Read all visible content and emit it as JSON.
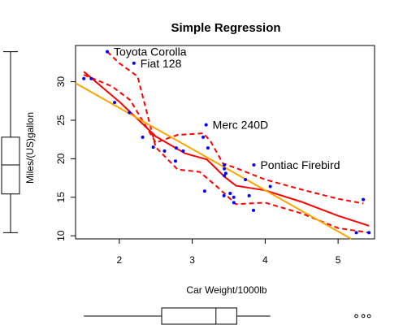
{
  "chart_data": {
    "type": "scatter",
    "title": "Simple Regression",
    "xlabel": "Car Weight/1000lb",
    "ylabel": "Miles/(US)gallon",
    "xlim": [
      1.4,
      5.5
    ],
    "ylim": [
      9.6,
      34.7
    ],
    "xticks": [
      2,
      3,
      4,
      5
    ],
    "yticks": [
      10,
      15,
      20,
      25,
      30
    ],
    "grid": false,
    "colors": {
      "points": "#0000ff",
      "lowess": "#ff0000",
      "band": "#ff0000",
      "regression": "#ffa500",
      "axis": "#000000"
    },
    "points": [
      {
        "x": 2.62,
        "y": 21.0
      },
      {
        "x": 2.875,
        "y": 21.0
      },
      {
        "x": 2.32,
        "y": 22.8
      },
      {
        "x": 3.215,
        "y": 21.4
      },
      {
        "x": 3.44,
        "y": 18.7
      },
      {
        "x": 3.46,
        "y": 18.1
      },
      {
        "x": 3.57,
        "y": 14.3
      },
      {
        "x": 3.19,
        "y": 24.4
      },
      {
        "x": 3.15,
        "y": 22.8
      },
      {
        "x": 3.44,
        "y": 19.2
      },
      {
        "x": 3.44,
        "y": 17.8
      },
      {
        "x": 4.07,
        "y": 16.4
      },
      {
        "x": 3.73,
        "y": 17.3
      },
      {
        "x": 3.78,
        "y": 15.2
      },
      {
        "x": 5.25,
        "y": 10.4
      },
      {
        "x": 5.424,
        "y": 10.4
      },
      {
        "x": 5.345,
        "y": 14.7
      },
      {
        "x": 2.2,
        "y": 32.4
      },
      {
        "x": 1.615,
        "y": 30.4
      },
      {
        "x": 1.835,
        "y": 33.9
      },
      {
        "x": 2.465,
        "y": 21.5
      },
      {
        "x": 3.52,
        "y": 15.5
      },
      {
        "x": 3.435,
        "y": 15.2
      },
      {
        "x": 3.84,
        "y": 13.3
      },
      {
        "x": 3.845,
        "y": 19.2
      },
      {
        "x": 1.935,
        "y": 27.3
      },
      {
        "x": 2.14,
        "y": 26.0
      },
      {
        "x": 1.513,
        "y": 30.4
      },
      {
        "x": 3.17,
        "y": 15.8
      },
      {
        "x": 2.77,
        "y": 19.7
      },
      {
        "x": 3.57,
        "y": 15.0
      },
      {
        "x": 2.78,
        "y": 21.4
      }
    ],
    "labeled_points": [
      {
        "x": 1.835,
        "y": 33.9,
        "label": "Toyota Corolla"
      },
      {
        "x": 2.2,
        "y": 32.4,
        "label": "Fiat 128"
      },
      {
        "x": 3.19,
        "y": 24.4,
        "label": "Merc 240D"
      },
      {
        "x": 3.845,
        "y": 19.2,
        "label": "Pontiac Firebird"
      }
    ],
    "regression_line": {
      "intercept": 37.285,
      "slope": -5.344
    },
    "lowess": [
      {
        "x": 1.513,
        "y": 31.3
      },
      {
        "x": 2.0,
        "y": 27.4
      },
      {
        "x": 2.5,
        "y": 22.9
      },
      {
        "x": 2.9,
        "y": 20.7
      },
      {
        "x": 3.2,
        "y": 19.9
      },
      {
        "x": 3.45,
        "y": 17.6
      },
      {
        "x": 3.6,
        "y": 16.5
      },
      {
        "x": 4.0,
        "y": 15.9
      },
      {
        "x": 4.5,
        "y": 14.4
      },
      {
        "x": 5.0,
        "y": 12.6
      },
      {
        "x": 5.424,
        "y": 11.3
      }
    ],
    "band_upper": [
      {
        "x": 1.513,
        "y": 30.9
      },
      {
        "x": 1.9,
        "y": 29.4
      },
      {
        "x": 2.15,
        "y": 27.6
      },
      {
        "x": 2.5,
        "y": 22.1
      },
      {
        "x": 2.8,
        "y": 23.1
      },
      {
        "x": 3.15,
        "y": 23.3
      },
      {
        "x": 3.25,
        "y": 22.3
      },
      {
        "x": 3.42,
        "y": 19.4
      },
      {
        "x": 3.6,
        "y": 18.8
      },
      {
        "x": 4.0,
        "y": 17.3
      },
      {
        "x": 4.5,
        "y": 16.0
      },
      {
        "x": 5.0,
        "y": 14.8
      },
      {
        "x": 5.345,
        "y": 14.2
      }
    ],
    "band_lower": [
      {
        "x": 1.835,
        "y": 33.9
      },
      {
        "x": 2.0,
        "y": 32.4
      },
      {
        "x": 2.25,
        "y": 30.7
      },
      {
        "x": 2.5,
        "y": 21.5
      },
      {
        "x": 2.8,
        "y": 18.6
      },
      {
        "x": 3.1,
        "y": 18.3
      },
      {
        "x": 3.35,
        "y": 16.3
      },
      {
        "x": 3.6,
        "y": 14.1
      },
      {
        "x": 4.0,
        "y": 14.3
      },
      {
        "x": 4.5,
        "y": 12.9
      },
      {
        "x": 5.0,
        "y": 11.0
      },
      {
        "x": 5.424,
        "y": 10.4
      }
    ],
    "boxplot_x": {
      "min": 1.513,
      "q1": 2.581,
      "median": 3.325,
      "q3": 3.61,
      "whisker_max": 4.07,
      "outliers": [
        5.25,
        5.345,
        5.424
      ]
    },
    "boxplot_y": {
      "min": 10.4,
      "q1": 15.43,
      "median": 19.2,
      "q3": 22.8,
      "max": 33.9
    }
  }
}
